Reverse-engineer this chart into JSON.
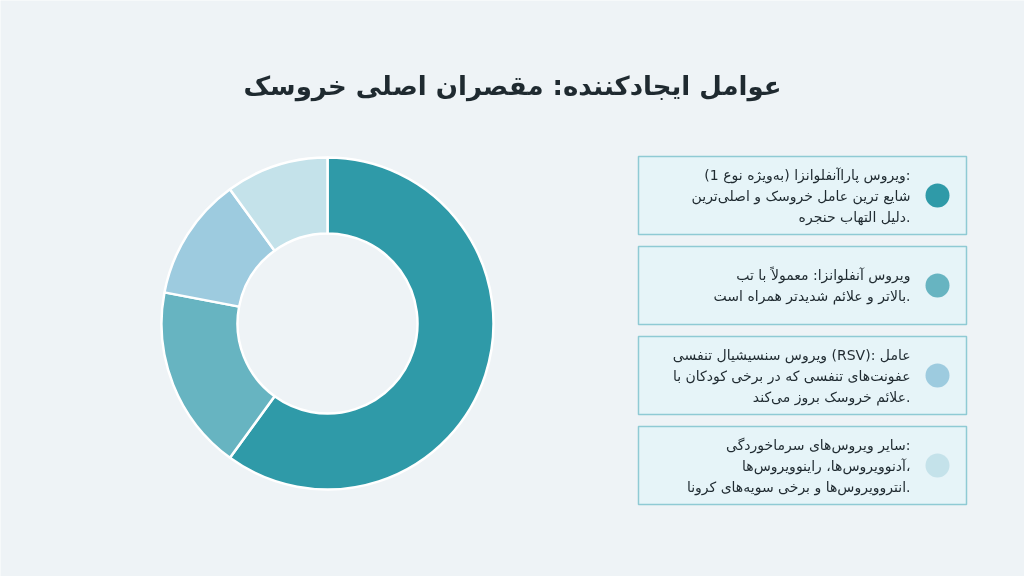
{
  "chart_data": {
    "type": "donut",
    "title": "عوامل ایجادکننده: مقصران اصلی خروسک",
    "categories": [
      "ویروس پاراآنفلوانزا (به‌ویژه نوع 1): شایع ترین عامل خروسک و اصلی‌ترین دلیل التهاب حنجره.",
      "ویروس آنفلوانزا: معمولاً با تب بالاتر و علائم شدیدتر همراه است.",
      "ویروس سنسیشیال تنفسی (RSV): عامل عفونت‌های تنفسی که در برخی کودکان با علائم خروسک بروز می‌کند.",
      "سایر ویروس‌های سرماخوردگی: آدنوویروس‌ها، راینوویروس‌ها، انتروویروس‌ها و برخی سویه‌های کرونا."
    ],
    "values": [
      60,
      18,
      12,
      10
    ],
    "colors": [
      "#2f9aa8",
      "#67b4c1",
      "#9dcbdf",
      "#c4e2ea"
    ],
    "legend": "right"
  }
}
